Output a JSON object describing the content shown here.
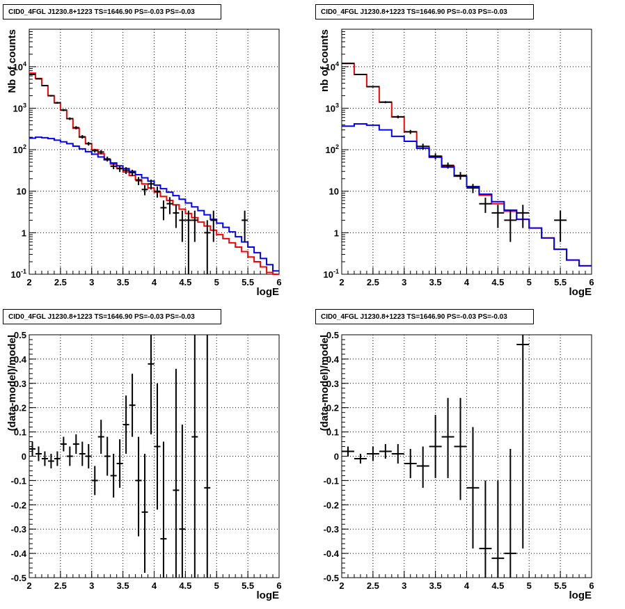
{
  "chart_data": [
    {
      "type": "histogram",
      "title": "CID0_4FGL J1230.8+1223 TS=1646.90 PS=-0.03 PS=-0.03",
      "xlabel": "logE",
      "ylabel": "Nb of counts",
      "xlim": [
        2,
        6
      ],
      "ylim": [
        0.1,
        80000
      ],
      "yscale": "log",
      "grid": true,
      "xticks": [
        "2",
        "2.5",
        "3",
        "3.5",
        "4",
        "4.5",
        "5",
        "5.5",
        "6"
      ],
      "yticks": [
        "10^-1",
        "1",
        "10",
        "10^2",
        "10^3",
        "10^4"
      ],
      "series": [
        {
          "color": "#ff0000",
          "kind": "step",
          "edges": [
            2.0,
            2.1,
            2.2,
            2.3,
            2.4,
            2.5,
            2.6,
            2.7,
            2.8,
            2.9,
            3.0,
            3.1,
            3.2,
            3.3,
            3.4,
            3.5,
            3.6,
            3.7,
            3.8,
            3.9,
            4.0,
            4.1,
            4.2,
            4.3,
            4.4,
            4.5,
            4.6,
            4.7,
            4.8,
            4.9,
            5.0,
            5.1,
            5.2,
            5.3,
            5.4,
            5.5,
            5.6,
            5.7,
            5.8,
            5.9,
            6.0
          ],
          "values": [
            7000,
            5200,
            3500,
            2000,
            1350,
            900,
            560,
            330,
            200,
            140,
            100,
            80,
            58,
            45,
            36,
            29,
            24,
            19,
            15,
            12,
            9.5,
            7.5,
            6,
            4.7,
            3.7,
            2.9,
            2.3,
            1.8,
            1.45,
            1.15,
            0.9,
            0.72,
            0.57,
            0.45,
            0.35,
            0.26,
            0.2,
            0.15,
            0.11,
            0.09
          ]
        },
        {
          "color": "#0000ff",
          "kind": "step",
          "edges": [
            2.0,
            2.1,
            2.2,
            2.3,
            2.4,
            2.5,
            2.6,
            2.7,
            2.8,
            2.9,
            3.0,
            3.1,
            3.2,
            3.3,
            3.4,
            3.5,
            3.6,
            3.7,
            3.8,
            3.9,
            4.0,
            4.1,
            4.2,
            4.3,
            4.4,
            4.5,
            4.6,
            4.7,
            4.8,
            4.9,
            5.0,
            5.1,
            5.2,
            5.3,
            5.4,
            5.5,
            5.6,
            5.7,
            5.8,
            5.9,
            6.0
          ],
          "values": [
            190,
            200,
            195,
            185,
            170,
            155,
            140,
            122,
            105,
            90,
            78,
            67,
            57,
            48,
            41,
            35,
            30,
            25,
            21,
            17.5,
            14,
            11.5,
            9.5,
            7.8,
            6.4,
            5.2,
            4.2,
            3.4,
            2.7,
            2.1,
            1.7,
            1.35,
            1.05,
            0.8,
            0.6,
            0.45,
            0.33,
            0.24,
            0.17,
            0.12
          ]
        },
        {
          "color": "#000000",
          "kind": "points",
          "points": [
            {
              "x": 2.05,
              "y": 6500,
              "lo": 6300,
              "hi": 6700
            },
            {
              "x": 2.15,
              "y": 5100,
              "lo": 4950,
              "hi": 5250
            },
            {
              "x": 2.25,
              "y": 3500,
              "lo": 3380,
              "hi": 3620
            },
            {
              "x": 2.35,
              "y": 2000,
              "lo": 1910,
              "hi": 2090
            },
            {
              "x": 2.45,
              "y": 1350,
              "lo": 1280,
              "hi": 1420
            },
            {
              "x": 2.55,
              "y": 900,
              "lo": 850,
              "hi": 950
            },
            {
              "x": 2.65,
              "y": 560,
              "lo": 520,
              "hi": 600
            },
            {
              "x": 2.75,
              "y": 340,
              "lo": 310,
              "hi": 370
            },
            {
              "x": 2.85,
              "y": 205,
              "lo": 185,
              "hi": 225
            },
            {
              "x": 2.95,
              "y": 140,
              "lo": 126,
              "hi": 154
            },
            {
              "x": 3.05,
              "y": 95,
              "lo": 85,
              "hi": 105
            },
            {
              "x": 3.15,
              "y": 88,
              "lo": 78,
              "hi": 98
            },
            {
              "x": 3.25,
              "y": 60,
              "lo": 52,
              "hi": 68
            },
            {
              "x": 3.35,
              "y": 40,
              "lo": 34,
              "hi": 46
            },
            {
              "x": 3.45,
              "y": 35,
              "lo": 29,
              "hi": 41
            },
            {
              "x": 3.55,
              "y": 32,
              "lo": 26,
              "hi": 38
            },
            {
              "x": 3.65,
              "y": 28,
              "lo": 23,
              "hi": 33
            },
            {
              "x": 3.75,
              "y": 18,
              "lo": 14,
              "hi": 22
            },
            {
              "x": 3.85,
              "y": 11,
              "lo": 8,
              "hi": 14
            },
            {
              "x": 3.95,
              "y": 15,
              "lo": 11,
              "hi": 19
            },
            {
              "x": 4.05,
              "y": 10,
              "lo": 7,
              "hi": 13
            },
            {
              "x": 4.15,
              "y": 4,
              "lo": 2,
              "hi": 6
            },
            {
              "x": 4.25,
              "y": 5,
              "lo": 2.8,
              "hi": 7.2
            },
            {
              "x": 4.35,
              "y": 3,
              "lo": 1.3,
              "hi": 4.7
            },
            {
              "x": 4.45,
              "y": 2,
              "lo": 0.6,
              "hi": 3.4
            },
            {
              "x": 4.55,
              "y": 2,
              "lo": 0.1,
              "hi": 3.4
            },
            {
              "x": 4.65,
              "y": 2,
              "lo": 0.6,
              "hi": 3.4
            },
            {
              "x": 4.85,
              "y": 1,
              "lo": 0.1,
              "hi": 2
            },
            {
              "x": 4.95,
              "y": 2,
              "lo": 0.6,
              "hi": 3.4
            },
            {
              "x": 5.45,
              "y": 2,
              "lo": 0.6,
              "hi": 3.4
            }
          ]
        }
      ]
    },
    {
      "type": "histogram",
      "title": "CID0_4FGL J1230.8+1223 TS=1646.90 PS=-0.03 PS=-0.03",
      "xlabel": "logE",
      "ylabel": "nb of counts",
      "xlim": [
        2,
        6
      ],
      "ylim": [
        0.1,
        80000
      ],
      "yscale": "log",
      "grid": true,
      "xticks": [
        "2",
        "2.5",
        "3",
        "3.5",
        "4",
        "4.5",
        "5",
        "5.5",
        "6"
      ],
      "yticks": [
        "10^-1",
        "1",
        "10",
        "10^2",
        "10^3",
        "10^4"
      ],
      "series": [
        {
          "color": "#ff0000",
          "kind": "step",
          "edges": [
            2.0,
            2.2,
            2.4,
            2.6,
            2.8,
            3.0,
            3.2,
            3.4,
            3.6,
            3.8,
            4.0,
            4.2,
            4.4,
            4.6,
            4.8,
            5.0,
            5.2,
            5.4,
            5.6,
            5.8,
            6.0
          ],
          "values": [
            12000,
            6500,
            3300,
            1400,
            620,
            270,
            120,
            70,
            40,
            23,
            13,
            8,
            5,
            3.3,
            2.1,
            1.3,
            0.75,
            0.4,
            0.22,
            0.16
          ]
        },
        {
          "color": "#0000ff",
          "kind": "step",
          "edges": [
            2.0,
            2.2,
            2.4,
            2.6,
            2.8,
            3.0,
            3.2,
            3.4,
            3.6,
            3.8,
            4.0,
            4.2,
            4.4,
            4.6,
            4.8,
            5.0,
            5.2,
            5.4,
            5.6,
            5.8,
            6.0
          ],
          "values": [
            370,
            420,
            390,
            300,
            210,
            160,
            108,
            66,
            38,
            23,
            13,
            8.5,
            5.6,
            3.5,
            2.1,
            1.3,
            0.75,
            0.4,
            0.22,
            0.16
          ]
        },
        {
          "color": "#000000",
          "kind": "points",
          "points": [
            {
              "x": 2.1,
              "y": 12000,
              "lo": 11700,
              "hi": 12300
            },
            {
              "x": 2.3,
              "y": 6500,
              "lo": 6300,
              "hi": 6700
            },
            {
              "x": 2.5,
              "y": 3300,
              "lo": 3150,
              "hi": 3450
            },
            {
              "x": 2.7,
              "y": 1400,
              "lo": 1320,
              "hi": 1480
            },
            {
              "x": 2.9,
              "y": 620,
              "lo": 570,
              "hi": 670
            },
            {
              "x": 3.1,
              "y": 270,
              "lo": 240,
              "hi": 300
            },
            {
              "x": 3.3,
              "y": 120,
              "lo": 100,
              "hi": 140
            },
            {
              "x": 3.5,
              "y": 70,
              "lo": 58,
              "hi": 82
            },
            {
              "x": 3.7,
              "y": 42,
              "lo": 35,
              "hi": 49
            },
            {
              "x": 3.9,
              "y": 24,
              "lo": 19,
              "hi": 29
            },
            {
              "x": 4.1,
              "y": 12,
              "lo": 9,
              "hi": 15
            },
            {
              "x": 4.3,
              "y": 5,
              "lo": 3,
              "hi": 7
            },
            {
              "x": 4.5,
              "y": 3,
              "lo": 1.3,
              "hi": 4.7
            },
            {
              "x": 4.7,
              "y": 2,
              "lo": 0.6,
              "hi": 3.4
            },
            {
              "x": 4.9,
              "y": 3,
              "lo": 1.3,
              "hi": 4.7
            },
            {
              "x": 5.5,
              "y": 2,
              "lo": 0.6,
              "hi": 3.4
            }
          ]
        }
      ]
    },
    {
      "type": "scatter",
      "title": "CID0_4FGL J1230.8+1223 TS=1646.90 PS=-0.03 PS=-0.03",
      "xlabel": "logE",
      "ylabel": "(data-model)/model",
      "xlim": [
        2,
        6
      ],
      "ylim": [
        -0.5,
        0.5
      ],
      "yscale": "linear",
      "grid": true,
      "xticks": [
        "2",
        "2.5",
        "3",
        "3.5",
        "4",
        "4.5",
        "5",
        "5.5",
        "6"
      ],
      "yticks": [
        "-0.5",
        "-0.4",
        "-0.3",
        "-0.2",
        "-0.1",
        "0",
        "0.1",
        "0.2",
        "0.3",
        "0.4",
        "0.5"
      ],
      "series": [
        {
          "color": "#000000",
          "kind": "points",
          "points": [
            {
              "x": 2.05,
              "y": 0.03,
              "lo": 0.0,
              "hi": 0.06
            },
            {
              "x": 2.15,
              "y": 0.01,
              "lo": -0.02,
              "hi": 0.04
            },
            {
              "x": 2.25,
              "y": -0.01,
              "lo": -0.04,
              "hi": 0.02
            },
            {
              "x": 2.35,
              "y": -0.02,
              "lo": -0.05,
              "hi": 0.01
            },
            {
              "x": 2.45,
              "y": -0.01,
              "lo": -0.04,
              "hi": 0.02
            },
            {
              "x": 2.55,
              "y": 0.05,
              "lo": 0.02,
              "hi": 0.08
            },
            {
              "x": 2.65,
              "y": 0.0,
              "lo": -0.04,
              "hi": 0.04
            },
            {
              "x": 2.75,
              "y": 0.05,
              "lo": 0.01,
              "hi": 0.09
            },
            {
              "x": 2.85,
              "y": 0.01,
              "lo": -0.04,
              "hi": 0.06
            },
            {
              "x": 2.95,
              "y": 0.0,
              "lo": -0.05,
              "hi": 0.05
            },
            {
              "x": 3.05,
              "y": -0.1,
              "lo": -0.16,
              "hi": -0.04
            },
            {
              "x": 3.15,
              "y": 0.08,
              "lo": 0.01,
              "hi": 0.15
            },
            {
              "x": 3.25,
              "y": 0.0,
              "lo": -0.08,
              "hi": 0.08
            },
            {
              "x": 3.35,
              "y": -0.08,
              "lo": -0.17,
              "hi": 0.01
            },
            {
              "x": 3.45,
              "y": -0.03,
              "lo": -0.13,
              "hi": 0.07
            },
            {
              "x": 3.55,
              "y": 0.13,
              "lo": 0.01,
              "hi": 0.25
            },
            {
              "x": 3.65,
              "y": 0.21,
              "lo": 0.08,
              "hi": 0.34
            },
            {
              "x": 3.75,
              "y": -0.1,
              "lo": -0.33,
              "hi": 0.08
            },
            {
              "x": 3.85,
              "y": -0.23,
              "lo": -0.48,
              "hi": 0.01
            },
            {
              "x": 3.95,
              "y": 0.38,
              "lo": 0.09,
              "hi": 0.5
            },
            {
              "x": 4.05,
              "y": 0.04,
              "lo": -0.22,
              "hi": 0.3
            },
            {
              "x": 4.15,
              "y": -0.34,
              "lo": -0.5,
              "hi": 0.06
            },
            {
              "x": 4.35,
              "y": -0.14,
              "lo": -0.5,
              "hi": 0.36
            },
            {
              "x": 4.45,
              "y": -0.3,
              "lo": -0.5,
              "hi": 0.13
            },
            {
              "x": 4.65,
              "y": 0.08,
              "lo": -0.5,
              "hi": 0.5
            },
            {
              "x": 4.85,
              "y": -0.13,
              "lo": -0.5,
              "hi": 0.5
            }
          ]
        }
      ]
    },
    {
      "type": "scatter",
      "title": "CID0_4FGL J1230.8+1223 TS=1646.90 PS=-0.03 PS=-0.03",
      "xlabel": "logE",
      "ylabel": "(data-model)/model",
      "xlim": [
        2,
        6
      ],
      "ylim": [
        -0.5,
        0.5
      ],
      "yscale": "linear",
      "grid": true,
      "xticks": [
        "2",
        "2.5",
        "3",
        "3.5",
        "4",
        "4.5",
        "5",
        "5.5",
        "6"
      ],
      "yticks": [
        "-0.5",
        "-0.4",
        "-0.3",
        "-0.2",
        "-0.1",
        "0",
        "0.1",
        "0.2",
        "0.3",
        "0.4",
        "0.5"
      ],
      "series": [
        {
          "color": "#000000",
          "kind": "points",
          "points": [
            {
              "x": 2.1,
              "y": 0.02,
              "lo": 0.0,
              "hi": 0.04
            },
            {
              "x": 2.3,
              "y": -0.01,
              "lo": -0.03,
              "hi": 0.01
            },
            {
              "x": 2.5,
              "y": 0.01,
              "lo": -0.02,
              "hi": 0.04
            },
            {
              "x": 2.7,
              "y": 0.02,
              "lo": -0.01,
              "hi": 0.05
            },
            {
              "x": 2.9,
              "y": 0.01,
              "lo": -0.03,
              "hi": 0.05
            },
            {
              "x": 3.1,
              "y": -0.03,
              "lo": -0.09,
              "hi": 0.03
            },
            {
              "x": 3.3,
              "y": -0.04,
              "lo": -0.13,
              "hi": 0.04
            },
            {
              "x": 3.5,
              "y": 0.04,
              "lo": -0.09,
              "hi": 0.17
            },
            {
              "x": 3.7,
              "y": 0.08,
              "lo": -0.09,
              "hi": 0.24
            },
            {
              "x": 3.9,
              "y": 0.04,
              "lo": -0.18,
              "hi": 0.24
            },
            {
              "x": 4.1,
              "y": -0.13,
              "lo": -0.38,
              "hi": 0.12
            },
            {
              "x": 4.3,
              "y": -0.38,
              "lo": -0.5,
              "hi": -0.1
            },
            {
              "x": 4.5,
              "y": -0.42,
              "lo": -0.5,
              "hi": -0.1
            },
            {
              "x": 4.7,
              "y": -0.4,
              "lo": -0.5,
              "hi": 0.03
            },
            {
              "x": 4.9,
              "y": 0.46,
              "lo": -0.38,
              "hi": 0.5
            }
          ]
        }
      ]
    }
  ]
}
